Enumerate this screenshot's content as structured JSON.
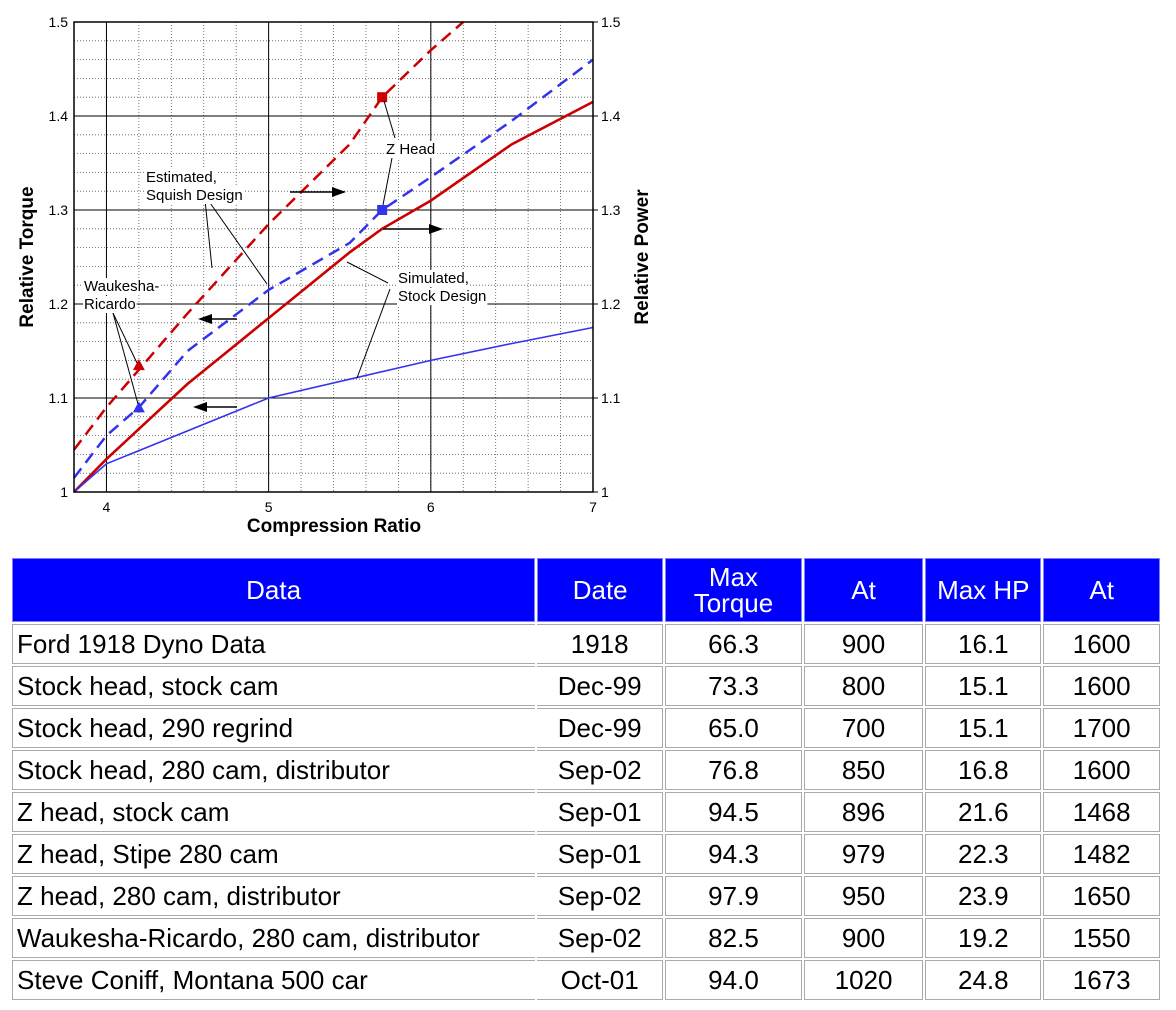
{
  "chart_data": {
    "type": "line",
    "xlabel": "Compression Ratio",
    "ylabel": "Relative Torque",
    "y2label": "Relative Power",
    "xlim": [
      3.8,
      7
    ],
    "xticks": [
      4,
      5,
      6,
      7
    ],
    "ylim": [
      1,
      1.5
    ],
    "yticks": [
      1,
      1.1,
      1.2,
      1.3,
      1.4,
      1.5
    ],
    "y2lim": [
      1,
      1.5
    ],
    "y2ticks": [
      1,
      1.1,
      1.2,
      1.3,
      1.4,
      1.5
    ],
    "grid": true,
    "minor_grid": {
      "x": 0.2,
      "y": 0.02
    },
    "series": [
      {
        "color": "#cc0000",
        "dash": true,
        "axis": "y2",
        "x": [
          3.8,
          4,
          4.5,
          5,
          5.5,
          5.7,
          6,
          6.2
        ],
        "values": [
          1.045,
          1.09,
          1.19,
          1.285,
          1.37,
          1.42,
          1.47,
          1.5
        ]
      },
      {
        "color": "#3333ee",
        "dash": true,
        "x": [
          3.8,
          4,
          4.2,
          4.5,
          5,
          5.5,
          5.7,
          6,
          6.5,
          7
        ],
        "values": [
          1.015,
          1.06,
          1.09,
          1.15,
          1.215,
          1.265,
          1.3,
          1.335,
          1.395,
          1.46
        ]
      },
      {
        "color": "#cc0000",
        "dash": false,
        "axis": "y2",
        "x": [
          3.8,
          4,
          4.5,
          5,
          5.5,
          5.7,
          6,
          6.5,
          7
        ],
        "values": [
          1.0,
          1.035,
          1.115,
          1.185,
          1.255,
          1.28,
          1.31,
          1.37,
          1.415
        ]
      },
      {
        "color": "#3333ee",
        "dash": false,
        "x": [
          3.8,
          4,
          4.5,
          5,
          5.5,
          6,
          6.5,
          7
        ],
        "values": [
          1.0,
          1.03,
          1.065,
          1.1,
          1.12,
          1.14,
          1.158,
          1.175
        ]
      }
    ],
    "points": [
      {
        "x": 5.7,
        "y": 1.42,
        "color": "#cc0000",
        "marker": "square"
      },
      {
        "x": 5.7,
        "y": 1.3,
        "color": "#3333ee",
        "marker": "square"
      },
      {
        "x": 4.2,
        "y": 1.135,
        "color": "#cc0000",
        "marker": "triangle"
      },
      {
        "x": 4.2,
        "y": 1.09,
        "color": "#3333ee",
        "marker": "triangle"
      }
    ],
    "annotations": [
      {
        "lines": [
          "Z Head"
        ]
      },
      {
        "lines": [
          "Estimated,",
          "Squish Design"
        ]
      },
      {
        "lines": [
          "Waukesha-",
          "Ricardo"
        ]
      },
      {
        "lines": [
          "Simulated,",
          "Stock Design"
        ]
      }
    ]
  },
  "table": {
    "header": [
      "Data",
      "Date",
      "Max Torque",
      "At",
      "Max HP",
      "At"
    ],
    "rows": [
      [
        "Ford 1918 Dyno Data",
        "1918",
        "66.3",
        "900",
        "16.1",
        "1600"
      ],
      [
        "Stock head, stock cam",
        "Dec-99",
        "73.3",
        "800",
        "15.1",
        "1600"
      ],
      [
        "Stock head, 290 regrind",
        "Dec-99",
        "65.0",
        "700",
        "15.1",
        "1700"
      ],
      [
        "Stock head, 280 cam, distributor",
        "Sep-02",
        "76.8",
        "850",
        "16.8",
        "1600"
      ],
      [
        "Z head, stock cam",
        "Sep-01",
        "94.5",
        "896",
        "21.6",
        "1468"
      ],
      [
        "Z head, Stipe 280 cam",
        "Sep-01",
        "94.3",
        "979",
        "22.3",
        "1482"
      ],
      [
        "Z head, 280 cam, distributor",
        "Sep-02",
        "97.9",
        "950",
        "23.9",
        "1650"
      ],
      [
        "Waukesha-Ricardo, 280 cam, distributor",
        "Sep-02",
        "82.5",
        "900",
        "19.2",
        "1550"
      ],
      [
        "Steve Coniff, Montana 500 car",
        "Oct-01",
        "94.0",
        "1020",
        "24.8",
        "1673"
      ]
    ]
  }
}
